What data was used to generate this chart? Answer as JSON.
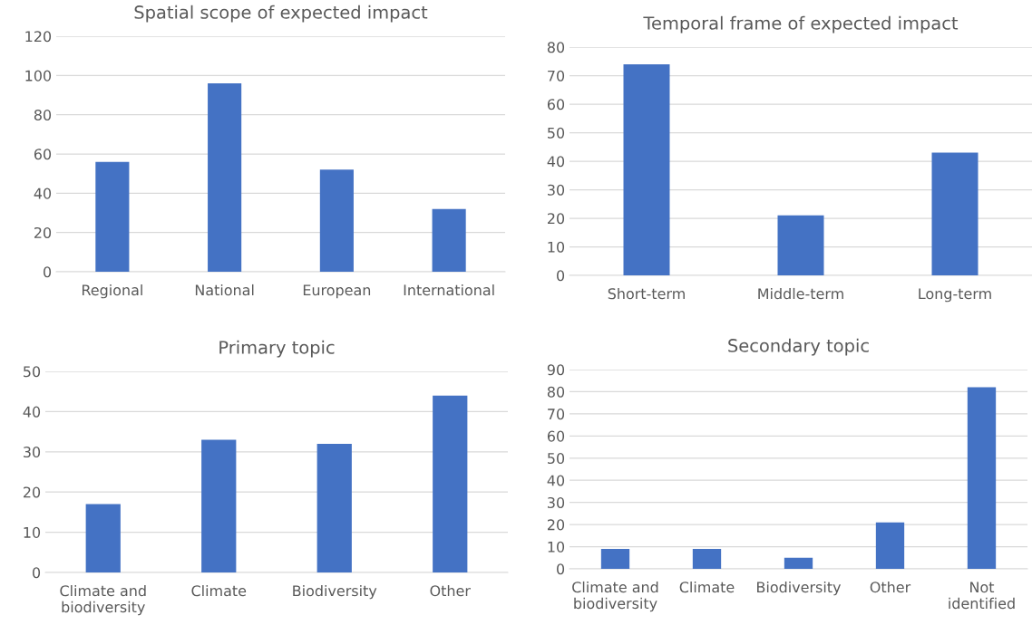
{
  "chart_data": [
    {
      "type": "bar",
      "title": "Spatial scope of expected impact",
      "categories": [
        "Regional",
        "National",
        "European",
        "International"
      ],
      "values": [
        56,
        96,
        52,
        32
      ],
      "color": "#4472c4",
      "ylim": [
        0,
        120
      ],
      "yticks": [
        0,
        20,
        40,
        60,
        80,
        100,
        120
      ],
      "grid": "y"
    },
    {
      "type": "bar",
      "title": "Temporal frame of expected impact",
      "categories": [
        "Short-term",
        "Middle-term",
        "Long-term"
      ],
      "values": [
        74,
        21,
        43
      ],
      "color": "#4472c4",
      "ylim": [
        0,
        80
      ],
      "yticks": [
        0,
        10,
        20,
        30,
        40,
        50,
        60,
        70,
        80
      ],
      "grid": "y"
    },
    {
      "type": "bar",
      "title": "Primary topic",
      "categories": [
        "Climate and\nbiodiversity",
        "Climate",
        "Biodiversity",
        "Other"
      ],
      "values": [
        17,
        33,
        32,
        44
      ],
      "color": "#4472c4",
      "ylim": [
        0,
        50
      ],
      "yticks": [
        0,
        10,
        20,
        30,
        40,
        50
      ],
      "grid": "y"
    },
    {
      "type": "bar",
      "title": "Secondary topic",
      "categories": [
        "Climate and\nbiodiversity",
        "Climate",
        "Biodiversity",
        "Other",
        "Not\nidentified"
      ],
      "values": [
        9,
        9,
        5,
        21,
        82
      ],
      "color": "#4472c4",
      "ylim": [
        0,
        90
      ],
      "yticks": [
        0,
        10,
        20,
        30,
        40,
        50,
        60,
        70,
        80,
        90
      ],
      "grid": "y"
    }
  ]
}
